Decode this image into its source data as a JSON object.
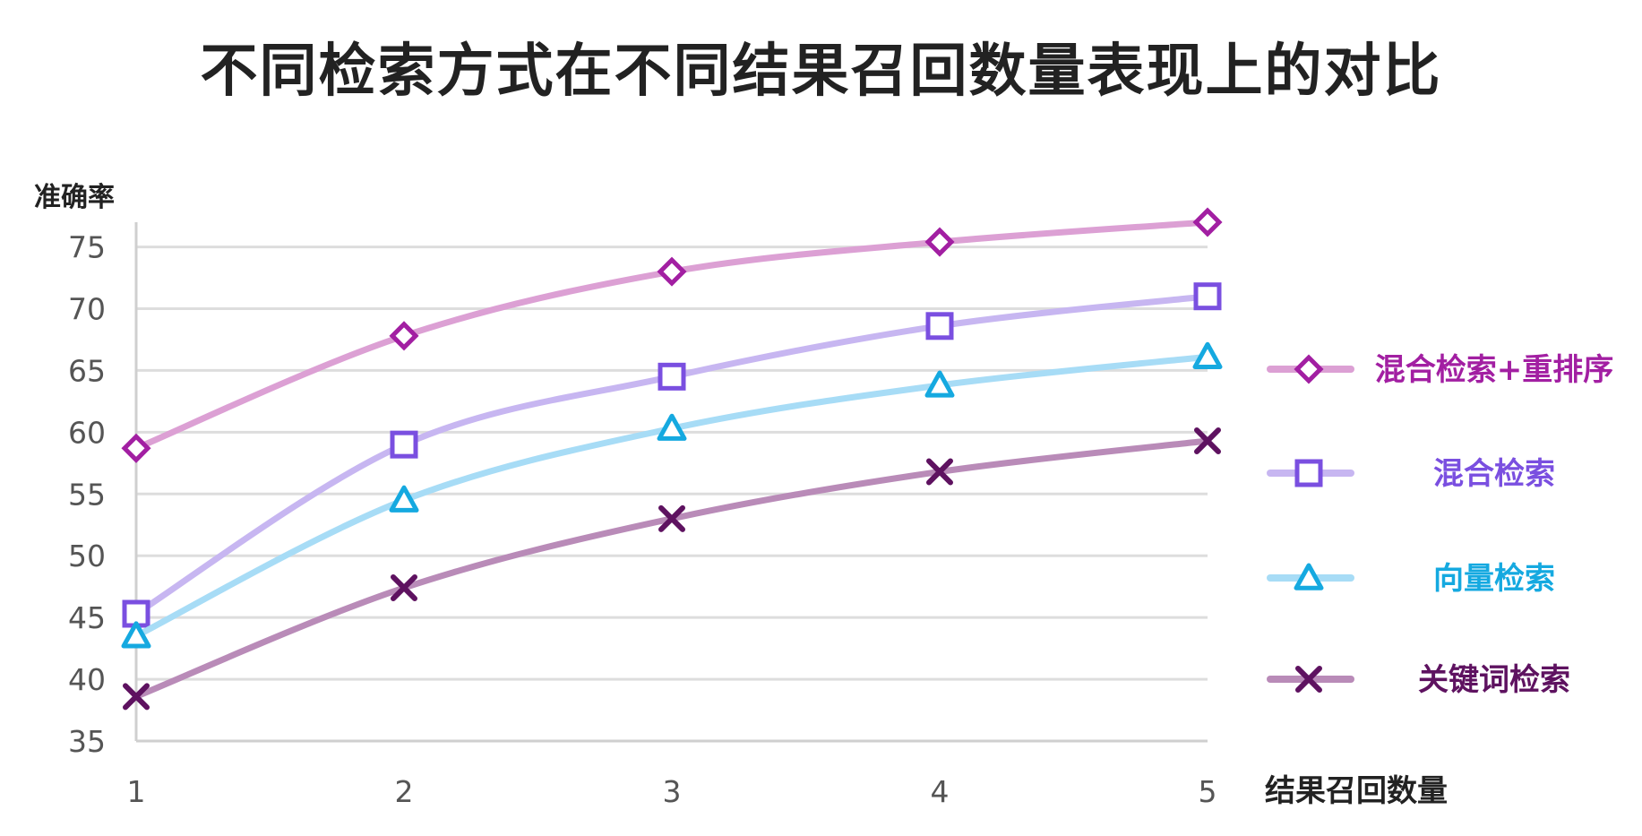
{
  "chart_data": {
    "type": "line",
    "title": "不同检索方式在不同结果召回数量表现上的对比",
    "xlabel": "结果召回数量",
    "ylabel": "准确率",
    "x": [
      1,
      2,
      3,
      4,
      5
    ],
    "xticks": [
      "1",
      "2",
      "3",
      "4",
      "5"
    ],
    "ylim": [
      35,
      77
    ],
    "yticks": [
      35,
      40,
      45,
      50,
      55,
      60,
      65,
      70,
      75
    ],
    "grid": true,
    "legend_position": "right",
    "series": [
      {
        "name": "混合检索+重排序",
        "values": [
          58.7,
          67.8,
          73.0,
          75.4,
          77.0
        ],
        "marker": "diamond",
        "line_color": "#dca0d4",
        "marker_color": "#a21fa2",
        "text_color": "#a21fa2"
      },
      {
        "name": "混合检索",
        "values": [
          45.3,
          59.0,
          64.5,
          68.6,
          71.0
        ],
        "marker": "square",
        "line_color": "#c7b6f1",
        "marker_color": "#7a4fe0",
        "text_color": "#7a4fe0"
      },
      {
        "name": "向量检索",
        "values": [
          43.5,
          54.5,
          60.3,
          63.8,
          66.1
        ],
        "marker": "triangle",
        "line_color": "#a7dcf6",
        "marker_color": "#15a9e0",
        "text_color": "#15a9e0"
      },
      {
        "name": "关键词检索",
        "values": [
          38.6,
          47.4,
          53.0,
          56.8,
          59.3
        ],
        "marker": "cross",
        "line_color": "#b98bb8",
        "marker_color": "#5e1260",
        "text_color": "#5e1260"
      }
    ]
  }
}
